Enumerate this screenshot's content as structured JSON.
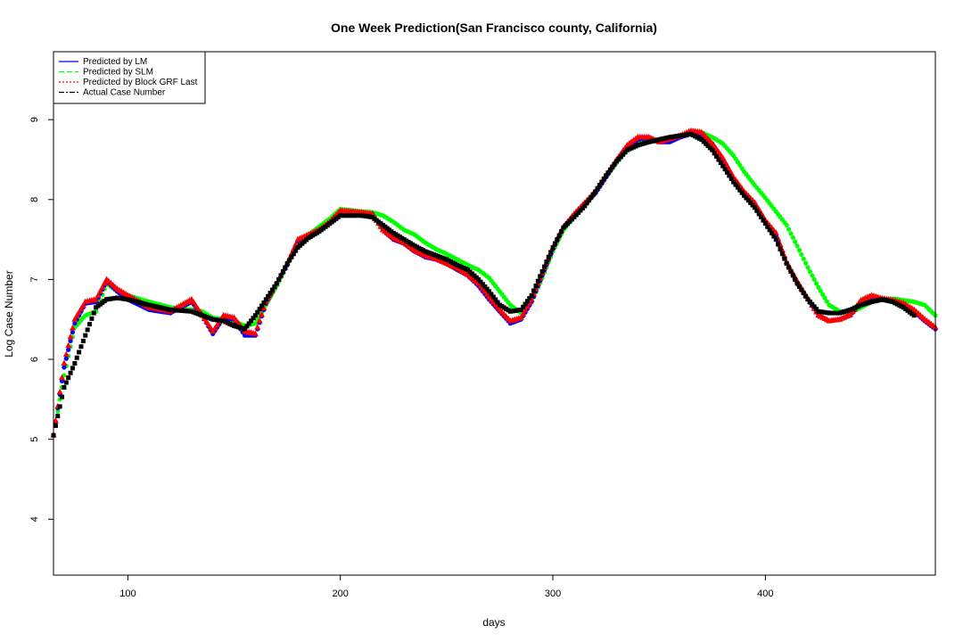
{
  "chart_data": {
    "type": "scatter",
    "title": "One Week Prediction(San Francisco county, California)",
    "xlabel": "days",
    "ylabel": "Log Case Number",
    "xlim": [
      65,
      480
    ],
    "ylim": [
      3.3,
      9.85
    ],
    "x_ticks": [
      100,
      200,
      300,
      400
    ],
    "y_ticks": [
      4,
      5,
      6,
      7,
      8,
      9
    ],
    "grid": false,
    "legend_position": "top-left",
    "legend": [
      {
        "label": "Predicted by LM",
        "color": "#0000ff",
        "dash": "solid"
      },
      {
        "label": "Predicted by SLM",
        "color": "#00ff00",
        "dash": "dashed"
      },
      {
        "label": "Predicted by Block GRF Last",
        "color": "#ff0000",
        "dash": "dotted"
      },
      {
        "label": "Actual Case Number",
        "color": "#000000",
        "dash": "dashdot"
      }
    ],
    "series": [
      {
        "name": "Actual Case Number",
        "color": "#000000",
        "marker": "square",
        "x": [
          65,
          70,
          75,
          80,
          85,
          90,
          95,
          100,
          110,
          120,
          130,
          135,
          140,
          145,
          150,
          155,
          160,
          165,
          170,
          175,
          180,
          185,
          190,
          195,
          200,
          210,
          215,
          220,
          225,
          230,
          235,
          240,
          245,
          250,
          255,
          260,
          265,
          270,
          275,
          280,
          285,
          290,
          295,
          300,
          305,
          310,
          315,
          320,
          325,
          330,
          335,
          340,
          345,
          350,
          355,
          360,
          365,
          370,
          375,
          380,
          385,
          390,
          395,
          400,
          405,
          410,
          415,
          420,
          425,
          430,
          435,
          440,
          445,
          450,
          455,
          460,
          465,
          470
        ],
        "y": [
          5.05,
          5.65,
          5.95,
          6.3,
          6.65,
          6.75,
          6.77,
          6.75,
          6.68,
          6.62,
          6.6,
          6.55,
          6.5,
          6.48,
          6.42,
          6.38,
          6.55,
          6.75,
          6.95,
          7.2,
          7.4,
          7.52,
          7.6,
          7.7,
          7.8,
          7.8,
          7.78,
          7.68,
          7.58,
          7.5,
          7.42,
          7.35,
          7.3,
          7.25,
          7.18,
          7.12,
          7.0,
          6.85,
          6.68,
          6.6,
          6.62,
          6.8,
          7.1,
          7.4,
          7.65,
          7.78,
          7.92,
          8.1,
          8.3,
          8.48,
          8.62,
          8.68,
          8.72,
          8.75,
          8.78,
          8.8,
          8.82,
          8.75,
          8.62,
          8.42,
          8.22,
          8.05,
          7.9,
          7.7,
          7.5,
          7.2,
          6.95,
          6.75,
          6.6,
          6.58,
          6.58,
          6.62,
          6.68,
          6.72,
          6.75,
          6.72,
          6.65,
          6.55
        ]
      },
      {
        "name": "Predicted by SLM",
        "color": "#00ff00",
        "marker": "circle",
        "x": [
          65,
          70,
          75,
          80,
          85,
          90,
          95,
          100,
          110,
          120,
          130,
          135,
          140,
          145,
          150,
          155,
          160,
          165,
          170,
          175,
          180,
          185,
          190,
          195,
          200,
          210,
          215,
          220,
          225,
          230,
          235,
          240,
          245,
          250,
          255,
          260,
          265,
          270,
          275,
          280,
          285,
          290,
          295,
          300,
          305,
          310,
          315,
          320,
          325,
          330,
          335,
          340,
          345,
          350,
          355,
          360,
          365,
          370,
          375,
          380,
          385,
          390,
          395,
          400,
          405,
          410,
          415,
          420,
          425,
          430,
          435,
          440,
          445,
          450,
          455,
          460,
          465,
          470,
          475,
          480
        ],
        "y": [
          5.05,
          5.8,
          6.4,
          6.55,
          6.6,
          6.95,
          6.85,
          6.8,
          6.72,
          6.65,
          6.62,
          6.6,
          6.52,
          6.5,
          6.48,
          6.42,
          6.45,
          6.68,
          6.92,
          7.18,
          7.42,
          7.56,
          7.66,
          7.76,
          7.88,
          7.85,
          7.84,
          7.8,
          7.72,
          7.62,
          7.56,
          7.46,
          7.38,
          7.32,
          7.25,
          7.18,
          7.12,
          7.02,
          6.85,
          6.68,
          6.58,
          6.72,
          7.02,
          7.35,
          7.62,
          7.78,
          7.92,
          8.08,
          8.28,
          8.46,
          8.62,
          8.7,
          8.72,
          8.74,
          8.76,
          8.8,
          8.83,
          8.84,
          8.78,
          8.7,
          8.55,
          8.35,
          8.18,
          8.02,
          7.85,
          7.68,
          7.42,
          7.15,
          6.9,
          6.68,
          6.6,
          6.58,
          6.65,
          6.72,
          6.75,
          6.76,
          6.74,
          6.72,
          6.68,
          6.55
        ]
      },
      {
        "name": "Predicted by LM",
        "color": "#0000ff",
        "marker": "circle",
        "x": [
          65,
          70,
          75,
          80,
          85,
          90,
          95,
          100,
          110,
          120,
          130,
          135,
          140,
          145,
          150,
          155,
          160,
          165,
          170,
          175,
          180,
          185,
          190,
          195,
          200,
          210,
          215,
          220,
          225,
          230,
          235,
          240,
          245,
          250,
          255,
          260,
          265,
          270,
          275,
          280,
          285,
          290,
          295,
          300,
          305,
          310,
          315,
          320,
          325,
          330,
          335,
          340,
          345,
          350,
          355,
          360,
          365,
          370,
          375,
          380,
          385,
          390,
          395,
          400,
          405,
          410,
          415,
          420,
          425,
          430,
          435,
          440,
          445,
          450,
          455,
          460,
          465,
          470,
          475,
          480
        ],
        "y": [
          5.05,
          5.9,
          6.45,
          6.7,
          6.72,
          6.98,
          6.85,
          6.75,
          6.62,
          6.58,
          6.72,
          6.55,
          6.32,
          6.52,
          6.5,
          6.3,
          6.3,
          6.7,
          6.95,
          7.18,
          7.48,
          7.55,
          7.62,
          7.7,
          7.85,
          7.8,
          7.82,
          7.62,
          7.5,
          7.45,
          7.35,
          7.28,
          7.25,
          7.2,
          7.12,
          7.05,
          6.92,
          6.75,
          6.6,
          6.45,
          6.5,
          6.72,
          7.05,
          7.38,
          7.65,
          7.8,
          7.95,
          8.08,
          8.28,
          8.48,
          8.65,
          8.75,
          8.78,
          8.72,
          8.72,
          8.78,
          8.82,
          8.8,
          8.7,
          8.5,
          8.25,
          8.08,
          7.95,
          7.72,
          7.55,
          7.2,
          6.95,
          6.75,
          6.55,
          6.48,
          6.5,
          6.55,
          6.72,
          6.78,
          6.75,
          6.72,
          6.68,
          6.6,
          6.48,
          6.38
        ]
      },
      {
        "name": "Predicted by Block GRF Last",
        "color": "#ff0000",
        "marker": "triangle",
        "x": [
          65,
          70,
          75,
          80,
          85,
          90,
          95,
          100,
          110,
          120,
          130,
          135,
          140,
          145,
          150,
          155,
          160,
          165,
          170,
          175,
          180,
          185,
          190,
          195,
          200,
          210,
          215,
          220,
          225,
          230,
          235,
          240,
          245,
          250,
          255,
          260,
          265,
          270,
          275,
          280,
          285,
          290,
          295,
          300,
          305,
          310,
          315,
          320,
          325,
          330,
          335,
          340,
          345,
          350,
          355,
          360,
          365,
          370,
          375,
          380,
          385,
          390,
          395,
          400,
          405,
          410,
          415,
          420,
          425,
          430,
          435,
          440,
          445,
          450,
          455,
          460,
          465,
          470,
          475,
          480
        ],
        "y": [
          5.05,
          5.95,
          6.5,
          6.72,
          6.75,
          7.0,
          6.88,
          6.8,
          6.65,
          6.6,
          6.75,
          6.55,
          6.35,
          6.55,
          6.52,
          6.35,
          6.32,
          6.72,
          6.95,
          7.2,
          7.5,
          7.56,
          7.62,
          7.72,
          7.86,
          7.84,
          7.82,
          7.62,
          7.52,
          7.46,
          7.36,
          7.3,
          7.26,
          7.2,
          7.14,
          7.06,
          6.95,
          6.78,
          6.62,
          6.48,
          6.52,
          6.75,
          7.08,
          7.4,
          7.66,
          7.82,
          7.96,
          8.1,
          8.3,
          8.5,
          8.68,
          8.78,
          8.78,
          8.72,
          8.76,
          8.8,
          8.86,
          8.84,
          8.7,
          8.52,
          8.28,
          8.1,
          7.96,
          7.74,
          7.58,
          7.22,
          6.98,
          6.76,
          6.55,
          6.48,
          6.5,
          6.56,
          6.74,
          6.8,
          6.76,
          6.74,
          6.7,
          6.62,
          6.5,
          6.4
        ]
      }
    ]
  }
}
